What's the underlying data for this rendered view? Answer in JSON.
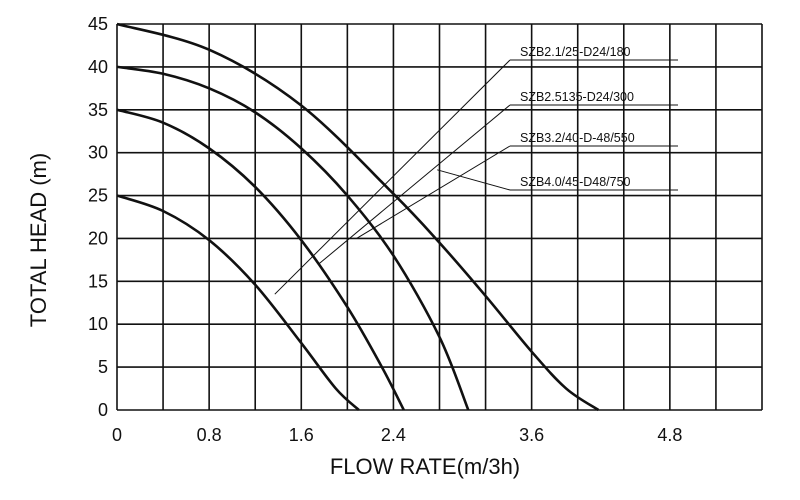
{
  "chart_data": {
    "type": "line",
    "title": "",
    "xlabel": "FLOW RATE(m/3h)",
    "ylabel": "TOTAL HEAD  (m)",
    "xlim": [
      0,
      5.6
    ],
    "ylim": [
      0,
      45
    ],
    "grid": true,
    "x_ticks": [
      0,
      0.8,
      1.6,
      2.4,
      3.6,
      4.8
    ],
    "x_tick_labels": [
      "0",
      "0.8",
      "1.6",
      "2.4",
      "3.6",
      "4.8"
    ],
    "y_ticks": [
      0,
      5,
      10,
      15,
      20,
      25,
      30,
      35,
      40,
      45
    ],
    "y_tick_labels": [
      "0",
      "5",
      "10",
      "15",
      "20",
      "25",
      "30",
      "35",
      "40",
      "45"
    ],
    "series": [
      {
        "name": "SZB2.1/25-D24/180",
        "x": [
          0,
          0.4,
          0.8,
          1.2,
          1.6,
          1.9,
          2.1
        ],
        "y": [
          25,
          23.2,
          19.8,
          14.6,
          7.8,
          2.5,
          0
        ]
      },
      {
        "name": "SZB2.5135-D24/300",
        "x": [
          0,
          0.4,
          0.8,
          1.2,
          1.6,
          2.0,
          2.3,
          2.49
        ],
        "y": [
          35,
          33.5,
          30.5,
          26,
          19.8,
          12,
          5,
          0
        ]
      },
      {
        "name": "SZB3.2/40-D-48/550",
        "x": [
          0,
          0.4,
          0.8,
          1.2,
          1.6,
          2.0,
          2.4,
          2.8,
          3.05
        ],
        "y": [
          40,
          39.2,
          37.5,
          34.7,
          30.5,
          25,
          18,
          8.5,
          0
        ]
      },
      {
        "name": "SZB4.0/45-D48/750",
        "x": [
          0,
          0.8,
          1.6,
          2.4,
          2.8,
          3.2,
          3.6,
          3.9,
          4.18
        ],
        "y": [
          45,
          42,
          35.5,
          25.2,
          19.5,
          13.3,
          6.8,
          2.5,
          0
        ]
      }
    ]
  }
}
